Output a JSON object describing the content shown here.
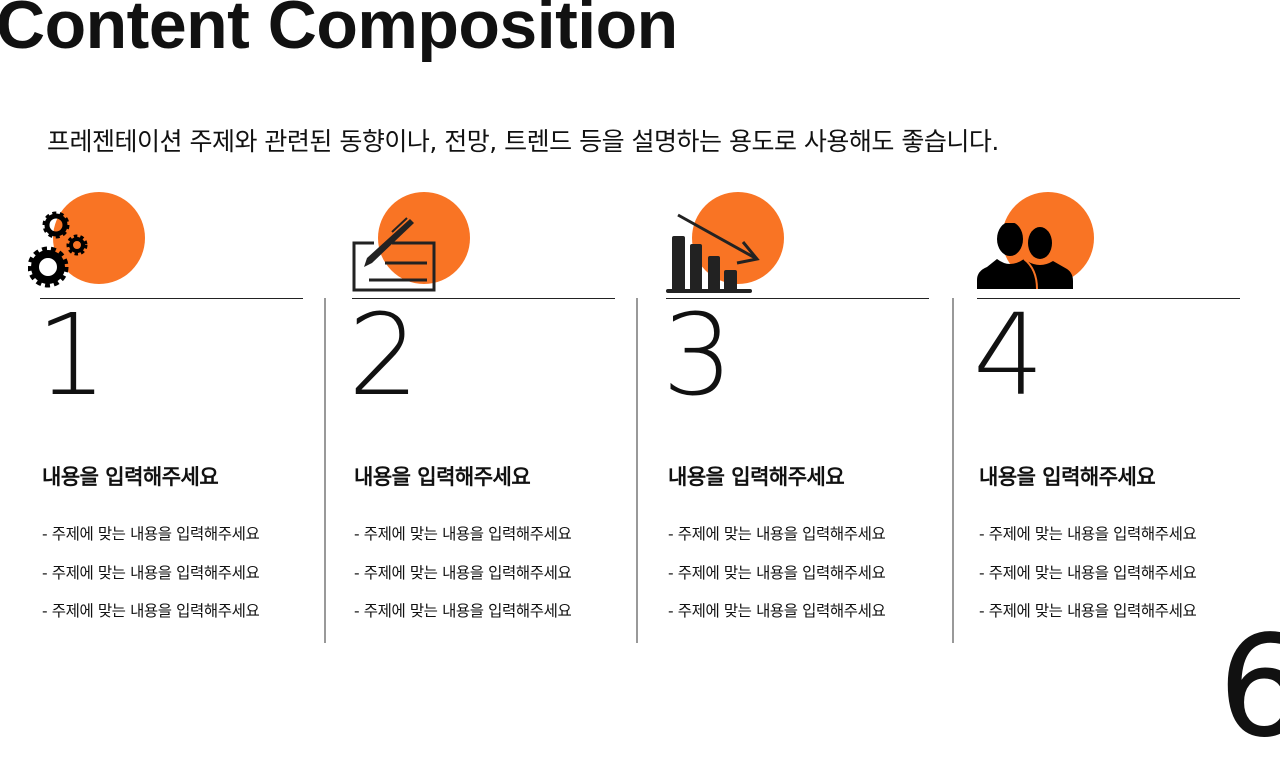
{
  "title": "Content Composition",
  "subtitle": "프레젠테이션 주제와 관련된 동향이나, 전망, 트렌드 등을 설명하는 용도로 사용해도 좋습니다.",
  "accent_color": "#F97424",
  "columns": [
    {
      "icon": "gears-icon",
      "number": "1",
      "heading": "내용을 입력해주세요",
      "bullets": [
        "- 주제에 맞는 내용을 입력해주세요",
        "- 주제에 맞는 내용을 입력해주세요",
        "- 주제에 맞는 내용을 입력해주세요"
      ]
    },
    {
      "icon": "pen-document-icon",
      "number": "2",
      "heading": "내용을 입력해주세요",
      "bullets": [
        "- 주제에 맞는 내용을 입력해주세요",
        "- 주제에 맞는 내용을 입력해주세요",
        "- 주제에 맞는 내용을 입력해주세요"
      ]
    },
    {
      "icon": "declining-bar-chart-icon",
      "number": "3",
      "heading": "내용을 입력해주세요",
      "bullets": [
        "- 주제에 맞는 내용을 입력해주세요",
        "- 주제에 맞는 내용을 입력해주세요",
        "- 주제에 맞는 내용을 입력해주세요"
      ]
    },
    {
      "icon": "people-icon",
      "number": "4",
      "heading": "내용을 입력해주세요",
      "bullets": [
        "- 주제에 맞는 내용을 입력해주세요",
        "- 주제에 맞는 내용을 입력해주세요",
        "- 주제에 맞는 내용을 입력해주세요"
      ]
    }
  ],
  "page_number": "6"
}
